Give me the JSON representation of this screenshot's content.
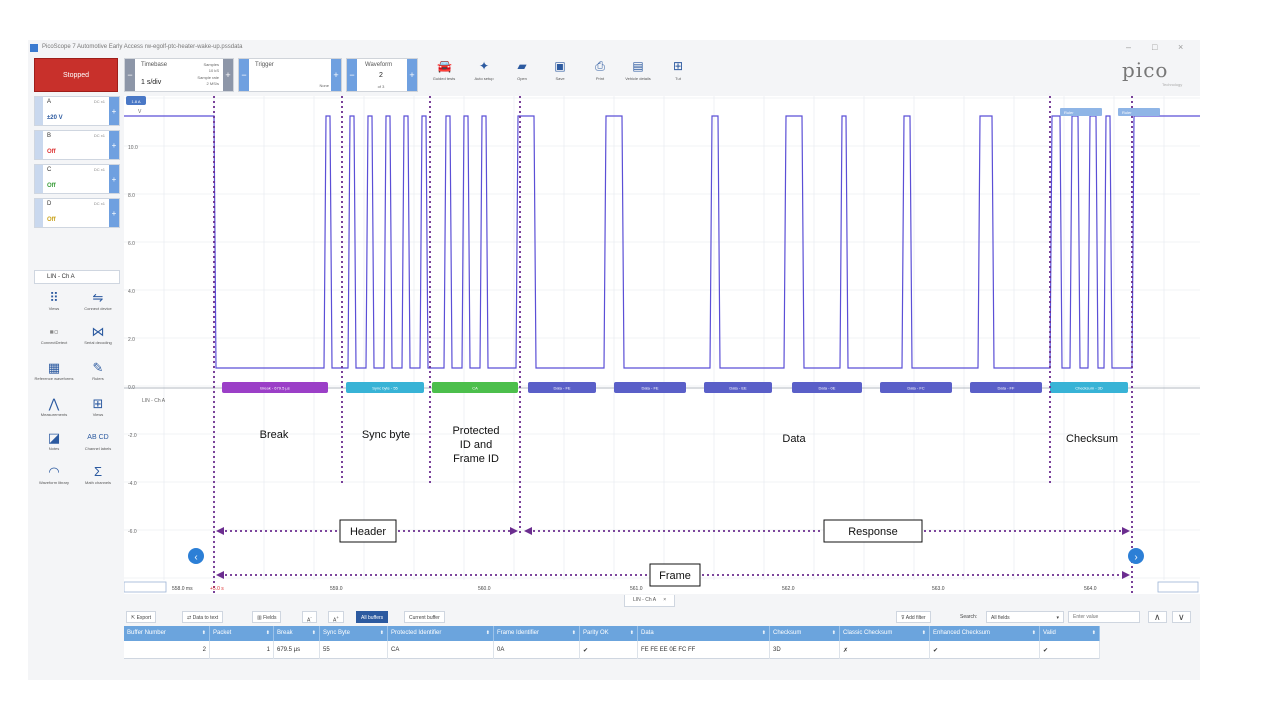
{
  "window": {
    "title": "PicoScope 7 Automotive Early Access rw-egolf-ptc-heater-wake-up.pssdata",
    "controls": [
      "–",
      "□",
      "×"
    ]
  },
  "toolbar": {
    "run_state": "Stopped",
    "timebase_label": "Timebase",
    "timebase_value": "1 s/div",
    "samples_label": "Samples",
    "samples_value": "10 kS",
    "sample_rate_label": "Sample rate",
    "sample_rate_value": "2 MS/s",
    "trigger_label": "Trigger",
    "trigger_value": "None",
    "waveform_label": "Waveform",
    "waveform_value": "2",
    "waveform_of": "of 3",
    "tools": [
      {
        "label": "Guided tests",
        "icon": "car-icon"
      },
      {
        "label": "Auto setup",
        "icon": "wand-icon"
      },
      {
        "label": "Open",
        "icon": "folder-icon"
      },
      {
        "label": "Save",
        "icon": "save-icon"
      },
      {
        "label": "Print",
        "icon": "print-icon"
      },
      {
        "label": "Vehicle details",
        "icon": "clipboard-icon"
      },
      {
        "label": "Tut",
        "icon": "grid-icon"
      }
    ],
    "logo": "pico",
    "logo_sub": "Technology"
  },
  "channels": [
    {
      "name": "A",
      "value": "±20 V",
      "coupling": "DC x1",
      "color": "#2c5aa0"
    },
    {
      "name": "B",
      "value": "Off",
      "coupling": "DC x1",
      "color": "#d33"
    },
    {
      "name": "C",
      "value": "Off",
      "coupling": "DC x1",
      "color": "#3a9d3a"
    },
    {
      "name": "D",
      "value": "Off",
      "coupling": "DC x1",
      "color": "#c9a21a"
    }
  ],
  "lin_channel": "LIN - Ch A",
  "side_tools": [
    {
      "label": "Views",
      "icon": "dots-grid-icon"
    },
    {
      "label": "Connect device",
      "icon": "usb-icon"
    },
    {
      "label": "ConnectDetect",
      "icon": "connect-detect-icon"
    },
    {
      "label": "Serial decoding",
      "icon": "serial-decoding-icon"
    },
    {
      "label": "Reference waveforms",
      "icon": "reference-icon"
    },
    {
      "label": "Rulers",
      "icon": "ruler-icon"
    },
    {
      "label": "Measurements",
      "icon": "measure-icon"
    },
    {
      "label": "Views",
      "icon": "views-icon"
    },
    {
      "label": "Notes",
      "icon": "notes-icon"
    },
    {
      "label": "Channel labels",
      "icon": "channel-labels-icon"
    },
    {
      "label": "Waveform library",
      "icon": "library-icon"
    },
    {
      "label": "Math channels",
      "icon": "sigma-icon"
    }
  ],
  "scope": {
    "channel_badge": "1.8 A",
    "unit": "V",
    "lin_label": "LIN - Ch A",
    "yticks": [
      "10.0",
      "8.0",
      "6.0",
      "4.0",
      "2.0",
      "0.0",
      "-2.0",
      "-4.0",
      "-6.0"
    ],
    "xticks": [
      "558.0 ms",
      "+5.0 s",
      "559.0",
      "560.0",
      "561.0",
      "562.0",
      "563.0",
      "564.0"
    ],
    "segments": [
      {
        "label": "Break - 679.5 µs",
        "color": "#9b3fc7"
      },
      {
        "label": "Sync byte - 55",
        "color": "#38b3d6"
      },
      {
        "label": "CA",
        "color": "#4cbf4c"
      },
      {
        "label": "Data - FE",
        "color": "#5a5fc8"
      },
      {
        "label": "Data - FE",
        "color": "#5a5fc8"
      },
      {
        "label": "Data - EE",
        "color": "#5a5fc8"
      },
      {
        "label": "Data - 0E",
        "color": "#5a5fc8"
      },
      {
        "label": "Data - FC",
        "color": "#5a5fc8"
      },
      {
        "label": "Data - FF",
        "color": "#5a5fc8"
      },
      {
        "label": "Checksum - 3D",
        "color": "#38b3d6"
      }
    ],
    "annotations": {
      "break": "Break",
      "sync": "Sync byte",
      "protected_1": "Protected",
      "protected_2": "ID and",
      "protected_3": "Frame ID",
      "data": "Data",
      "checksum": "Checksum",
      "header": "Header",
      "response": "Response",
      "frame": "Frame"
    },
    "ruler_tags": [
      "Ruler",
      "Ruler"
    ]
  },
  "decode": {
    "tab_label": "LIN - Ch A",
    "buttons": {
      "export": "Export",
      "data_to_text": "Data to text",
      "fields": "Fields",
      "all_buffers": "All buffers",
      "current_buffer": "Current buffer",
      "add_filter": "Add filter",
      "search_label": "Search:",
      "search_scope": "All fields",
      "search_placeholder": "Enter value"
    },
    "columns": [
      "Buffer Number",
      "Packet",
      "Break",
      "Sync Byte",
      "Protected Identifier",
      "Frame Identifier",
      "Parity OK",
      "Data",
      "Checksum",
      "Classic Checksum",
      "Enhanced Checksum",
      "Valid"
    ],
    "row": [
      "2",
      "1",
      "679.5 µs",
      "55",
      "CA",
      "0A",
      "✔",
      "FE FE EE 0E FC FF",
      "3D",
      "✗",
      "✔",
      "✔"
    ]
  }
}
